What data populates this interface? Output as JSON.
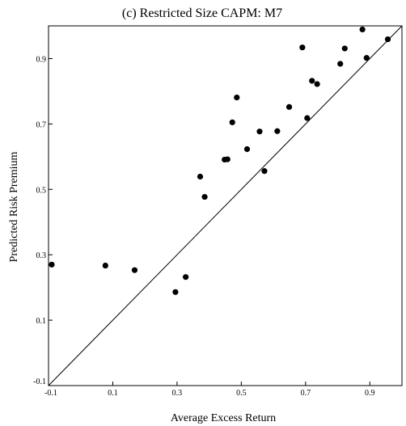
{
  "chart_data": {
    "type": "scatter",
    "title": "(c) Restricted Size CAPM: M7",
    "xlabel": "Average Excess Return",
    "ylabel": "Predicted Risk Premium",
    "xlim": [
      -0.1,
      1.0
    ],
    "ylim": [
      -0.1,
      1.0
    ],
    "x_ticks": [
      "-0.1",
      "0.1",
      "0.3",
      "0.5",
      "0.7",
      "0.9"
    ],
    "x_tick_values": [
      -0.1,
      0.1,
      0.3,
      0.5,
      0.7,
      0.9
    ],
    "y_ticks": [
      "-0.1",
      "0.1",
      "0.3",
      "0.5",
      "0.7",
      "0.9"
    ],
    "y_tick_values": [
      -0.1,
      0.1,
      0.3,
      0.5,
      0.7,
      0.9
    ],
    "reference_line": "45-degree line",
    "grid": false,
    "points": [
      {
        "x": -0.09,
        "y": 0.27
      },
      {
        "x": 0.077,
        "y": 0.267
      },
      {
        "x": 0.168,
        "y": 0.253
      },
      {
        "x": 0.295,
        "y": 0.186
      },
      {
        "x": 0.327,
        "y": 0.232
      },
      {
        "x": 0.372,
        "y": 0.539
      },
      {
        "x": 0.386,
        "y": 0.477
      },
      {
        "x": 0.448,
        "y": 0.591
      },
      {
        "x": 0.457,
        "y": 0.592
      },
      {
        "x": 0.472,
        "y": 0.705
      },
      {
        "x": 0.486,
        "y": 0.781
      },
      {
        "x": 0.518,
        "y": 0.623
      },
      {
        "x": 0.557,
        "y": 0.677
      },
      {
        "x": 0.572,
        "y": 0.556
      },
      {
        "x": 0.649,
        "y": 0.752
      },
      {
        "x": 0.612,
        "y": 0.678
      },
      {
        "x": 0.69,
        "y": 0.934
      },
      {
        "x": 0.705,
        "y": 0.718
      },
      {
        "x": 0.72,
        "y": 0.832
      },
      {
        "x": 0.736,
        "y": 0.822
      },
      {
        "x": 0.808,
        "y": 0.884
      },
      {
        "x": 0.822,
        "y": 0.931
      },
      {
        "x": 0.877,
        "y": 0.989
      },
      {
        "x": 0.89,
        "y": 0.902
      },
      {
        "x": 0.956,
        "y": 0.959
      }
    ]
  }
}
